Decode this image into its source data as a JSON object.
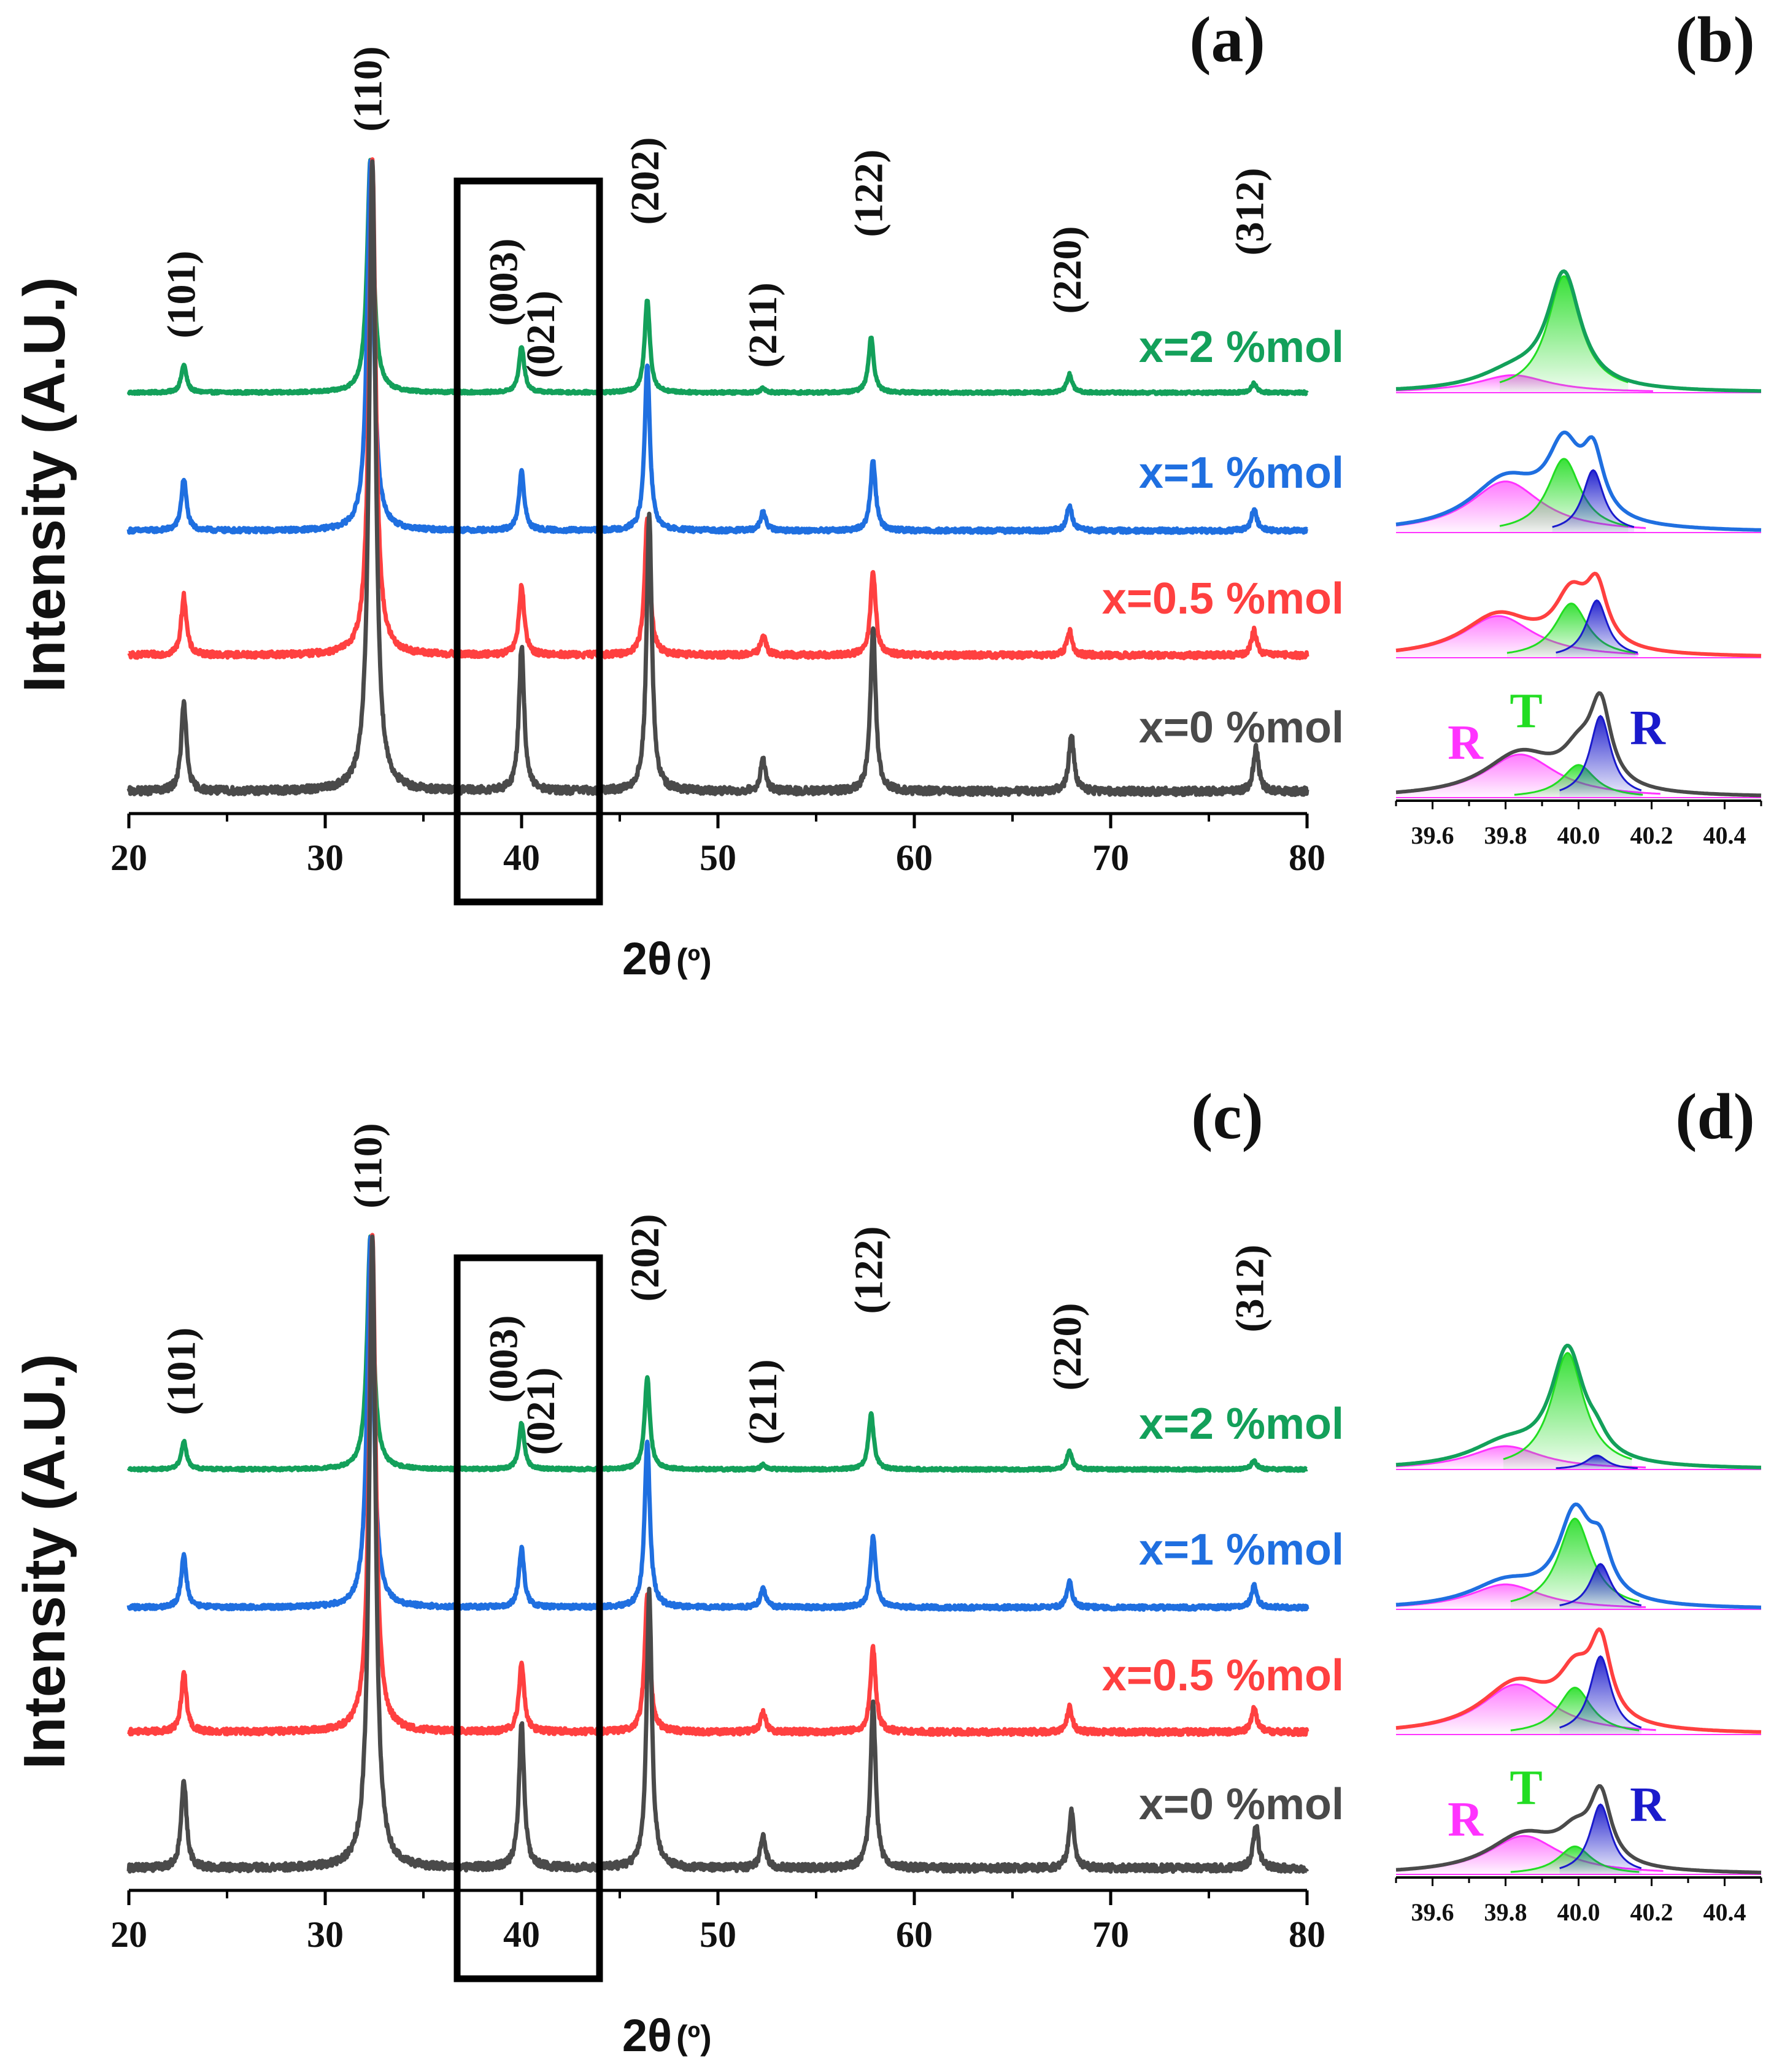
{
  "colors": {
    "x0": "#4a4a4a",
    "x05": "#ff4040",
    "x1": "#1f6fe0",
    "x2": "#13a05a",
    "fitR1": "#ff33ff",
    "fitT": "#22dd22",
    "fitR2": "#1a1acc",
    "box": "#000000"
  },
  "panels": {
    "a": "(a)",
    "b": "(b)",
    "c": "(c)",
    "d": "(d)"
  },
  "axis": {
    "ylabel": "Intensity (A.U.)",
    "xlabel_main": "2θ",
    "xlabel_unit": "(º)"
  },
  "chart_data": [
    {
      "id": "a",
      "type": "line",
      "title": "(a)",
      "xlabel": "2θ (º)",
      "ylabel": "Intensity (A.U.)",
      "xlim": [
        20,
        80
      ],
      "xticks": [
        "20",
        "30",
        "40",
        "50",
        "60",
        "70",
        "80"
      ],
      "highlight_box_x": [
        37,
        44
      ],
      "peak_labels": [
        {
          "x": 22.8,
          "text": "(101)"
        },
        {
          "x": 32.3,
          "text": "(110)"
        },
        {
          "x": 39.2,
          "text": "(003)"
        },
        {
          "x": 41.1,
          "text": "(021)"
        },
        {
          "x": 46.4,
          "text": "(202)"
        },
        {
          "x": 52.4,
          "text": "(211)"
        },
        {
          "x": 57.8,
          "text": "(122)"
        },
        {
          "x": 67.9,
          "text": "(220)"
        },
        {
          "x": 77.2,
          "text": "(312)"
        }
      ],
      "series": [
        {
          "name": "x=2 %mol",
          "peaks": [
            [
              22.8,
              0.12
            ],
            [
              32.3,
              1.0
            ],
            [
              40.0,
              0.2
            ],
            [
              46.4,
              0.4
            ],
            [
              52.3,
              0.02
            ],
            [
              57.8,
              0.24
            ],
            [
              67.9,
              0.08
            ],
            [
              77.3,
              0.04
            ]
          ]
        },
        {
          "name": "x=1 %mol",
          "peaks": [
            [
              22.8,
              0.14
            ],
            [
              32.3,
              1.0
            ],
            [
              40.0,
              0.16
            ],
            [
              46.4,
              0.45
            ],
            [
              52.3,
              0.05
            ],
            [
              57.9,
              0.19
            ],
            [
              67.9,
              0.07
            ],
            [
              77.3,
              0.06
            ]
          ]
        },
        {
          "name": "x=0.5 %mol",
          "peaks": [
            [
              22.8,
              0.12
            ],
            [
              32.4,
              1.0
            ],
            [
              40.0,
              0.14
            ],
            [
              46.4,
              0.28
            ],
            [
              52.3,
              0.04
            ],
            [
              57.9,
              0.17
            ],
            [
              67.9,
              0.05
            ],
            [
              77.3,
              0.05
            ]
          ]
        },
        {
          "name": "x=0 %mol",
          "peaks": [
            [
              22.8,
              0.14
            ],
            [
              32.4,
              1.0
            ],
            [
              40.0,
              0.23
            ],
            [
              46.5,
              0.44
            ],
            [
              52.3,
              0.05
            ],
            [
              57.9,
              0.26
            ],
            [
              68.0,
              0.09
            ],
            [
              77.4,
              0.07
            ]
          ]
        }
      ]
    },
    {
      "id": "b",
      "type": "line",
      "title": "(b)",
      "xlim": [
        39.5,
        40.5
      ],
      "xticks": [
        "39.6",
        "39.8",
        "40.0",
        "40.2",
        "40.4"
      ],
      "phase_labels": {
        "R1": "R",
        "T": "T",
        "R2": "R"
      },
      "series": [
        {
          "name": "x=2 %mol",
          "R1": [
            39.82,
            0.15
          ],
          "T": [
            39.96,
            1.0
          ],
          "R2": null
        },
        {
          "name": "x=1 %mol",
          "R1": [
            39.8,
            0.45
          ],
          "T": [
            39.96,
            0.65
          ],
          "R2": [
            40.04,
            0.55
          ]
        },
        {
          "name": "x=0.5 %mol",
          "R1": [
            39.78,
            0.4
          ],
          "T": [
            39.98,
            0.52
          ],
          "R2": [
            40.05,
            0.55
          ]
        },
        {
          "name": "x=0 %mol",
          "R1": [
            39.84,
            0.37
          ],
          "T": [
            40.0,
            0.28
          ],
          "R2": [
            40.06,
            0.7
          ]
        }
      ]
    },
    {
      "id": "c",
      "type": "line",
      "title": "(c)",
      "xlabel": "2θ (º)",
      "ylabel": "Intensity (A.U.)",
      "xlim": [
        20,
        80
      ],
      "xticks": [
        "20",
        "30",
        "40",
        "50",
        "60",
        "70",
        "80"
      ],
      "highlight_box_x": [
        37,
        44
      ],
      "peak_labels": [
        {
          "x": 22.8,
          "text": "(101)"
        },
        {
          "x": 32.3,
          "text": "(110)"
        },
        {
          "x": 39.2,
          "text": "(003)"
        },
        {
          "x": 41.1,
          "text": "(021)"
        },
        {
          "x": 46.4,
          "text": "(202)"
        },
        {
          "x": 52.4,
          "text": "(211)"
        },
        {
          "x": 57.8,
          "text": "(122)"
        },
        {
          "x": 67.9,
          "text": "(220)"
        },
        {
          "x": 77.2,
          "text": "(312)"
        }
      ],
      "series": [
        {
          "name": "x=2 %mol",
          "peaks": [
            [
              22.8,
              0.12
            ],
            [
              32.3,
              1.0
            ],
            [
              40.0,
              0.2
            ],
            [
              46.4,
              0.4
            ],
            [
              52.3,
              0.02
            ],
            [
              57.8,
              0.24
            ],
            [
              67.9,
              0.08
            ],
            [
              77.3,
              0.04
            ]
          ]
        },
        {
          "name": "x=1 %mol",
          "peaks": [
            [
              22.8,
              0.14
            ],
            [
              32.3,
              1.0
            ],
            [
              40.0,
              0.16
            ],
            [
              46.4,
              0.45
            ],
            [
              52.3,
              0.05
            ],
            [
              57.9,
              0.19
            ],
            [
              67.9,
              0.07
            ],
            [
              77.3,
              0.06
            ]
          ]
        },
        {
          "name": "x=0.5 %mol",
          "peaks": [
            [
              22.8,
              0.12
            ],
            [
              32.4,
              1.0
            ],
            [
              40.0,
              0.14
            ],
            [
              46.4,
              0.28
            ],
            [
              52.3,
              0.04
            ],
            [
              57.9,
              0.17
            ],
            [
              67.9,
              0.05
            ],
            [
              77.3,
              0.05
            ]
          ]
        },
        {
          "name": "x=0 %mol",
          "peaks": [
            [
              22.8,
              0.14
            ],
            [
              32.4,
              1.0
            ],
            [
              40.0,
              0.23
            ],
            [
              46.5,
              0.44
            ],
            [
              52.3,
              0.05
            ],
            [
              57.9,
              0.26
            ],
            [
              68.0,
              0.09
            ],
            [
              77.4,
              0.07
            ]
          ]
        }
      ]
    },
    {
      "id": "d",
      "type": "line",
      "title": "(d)",
      "xlim": [
        39.5,
        40.5
      ],
      "xticks": [
        "39.6",
        "39.8",
        "40.0",
        "40.2",
        "40.4"
      ],
      "phase_labels": {
        "R1": "R",
        "T": "T",
        "R2": "R"
      },
      "series": [
        {
          "name": "x=2 %mol",
          "R1": [
            39.8,
            0.2
          ],
          "T": [
            39.97,
            1.0
          ],
          "R2": [
            40.05,
            0.12
          ]
        },
        {
          "name": "x=1 %mol",
          "R1": [
            39.8,
            0.22
          ],
          "T": [
            39.99,
            0.8
          ],
          "R2": [
            40.06,
            0.4
          ]
        },
        {
          "name": "x=0.5 %mol",
          "R1": [
            39.83,
            0.48
          ],
          "T": [
            39.99,
            0.45
          ],
          "R2": [
            40.06,
            0.75
          ]
        },
        {
          "name": "x=0 %mol",
          "R1": [
            39.85,
            0.33
          ],
          "T": [
            39.99,
            0.24
          ],
          "R2": [
            40.06,
            0.6
          ]
        }
      ]
    }
  ]
}
